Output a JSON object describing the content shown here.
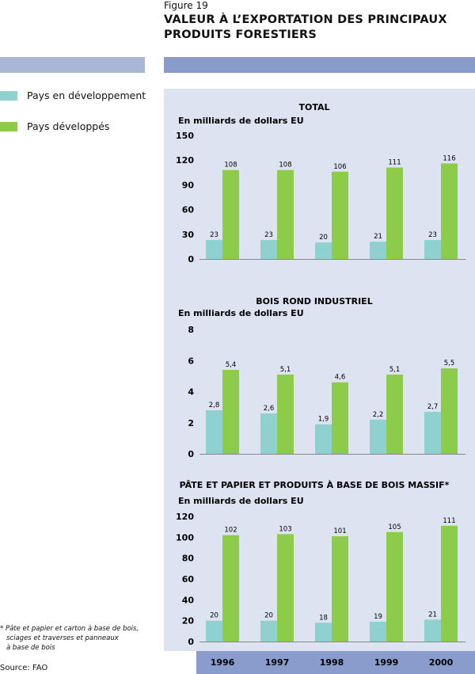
{
  "figure": {
    "label": "Figure 19",
    "title_line1": "VALEUR À L’EXPORTATION DES PRINCIPAUX",
    "title_line2": "PRODUITS FORESTIERS"
  },
  "legend": [
    {
      "name": "Pays en développement",
      "color": "#8fd0d0"
    },
    {
      "name": "Pays développés",
      "color": "#8dcc4a"
    }
  ],
  "footnote": {
    "line1": "* Pâte et papier et carton à base de bois,",
    "line2": "sciages et traverses et panneaux",
    "line3": "à base de bois"
  },
  "source": "Source: FAO",
  "chart_data": [
    {
      "type": "bar",
      "title": "TOTAL",
      "ylabel": "En milliards de dollars EU",
      "categories": [
        "1996",
        "1997",
        "1998",
        "1999",
        "2000"
      ],
      "yticks": [
        "0",
        "30",
        "60",
        "90",
        "120",
        "150"
      ],
      "ylim": [
        0,
        150
      ],
      "series": [
        {
          "name": "Pays en développement",
          "values": [
            23,
            23,
            20,
            21,
            23
          ],
          "labels": [
            "23",
            "23",
            "20",
            "21",
            "23"
          ]
        },
        {
          "name": "Pays développés",
          "values": [
            108,
            108,
            106,
            111,
            116
          ],
          "labels": [
            "108",
            "108",
            "106",
            "111",
            "116"
          ]
        }
      ]
    },
    {
      "type": "bar",
      "title": "BOIS ROND INDUSTRIEL",
      "ylabel": "En milliards de dollars EU",
      "categories": [
        "1996",
        "1997",
        "1998",
        "1999",
        "2000"
      ],
      "yticks": [
        "0",
        "2",
        "4",
        "6",
        "8"
      ],
      "ylim": [
        0,
        8
      ],
      "series": [
        {
          "name": "Pays en développement",
          "values": [
            2.8,
            2.6,
            1.9,
            2.2,
            2.7
          ],
          "labels": [
            "2,8",
            "2,6",
            "1,9",
            "2,2",
            "2,7"
          ]
        },
        {
          "name": "Pays développés",
          "values": [
            5.4,
            5.1,
            4.6,
            5.1,
            5.5
          ],
          "labels": [
            "5,4",
            "5,1",
            "4,6",
            "5,1",
            "5,5"
          ]
        }
      ]
    },
    {
      "type": "bar",
      "title": "PÂTE ET PAPIER ET PRODUITS À BASE DE BOIS MASSIF*",
      "ylabel": "En milliards de dollars EU",
      "categories": [
        "1996",
        "1997",
        "1998",
        "1999",
        "2000"
      ],
      "yticks": [
        "0",
        "20",
        "40",
        "60",
        "80",
        "100",
        "120"
      ],
      "ylim": [
        0,
        120
      ],
      "series": [
        {
          "name": "Pays en développement",
          "values": [
            20,
            20,
            18,
            19,
            21
          ],
          "labels": [
            "20",
            "20",
            "18",
            "19",
            "21"
          ]
        },
        {
          "name": "Pays développés",
          "values": [
            102,
            103,
            101,
            105,
            111
          ],
          "labels": [
            "102",
            "103",
            "101",
            "105",
            "111"
          ]
        }
      ]
    }
  ]
}
